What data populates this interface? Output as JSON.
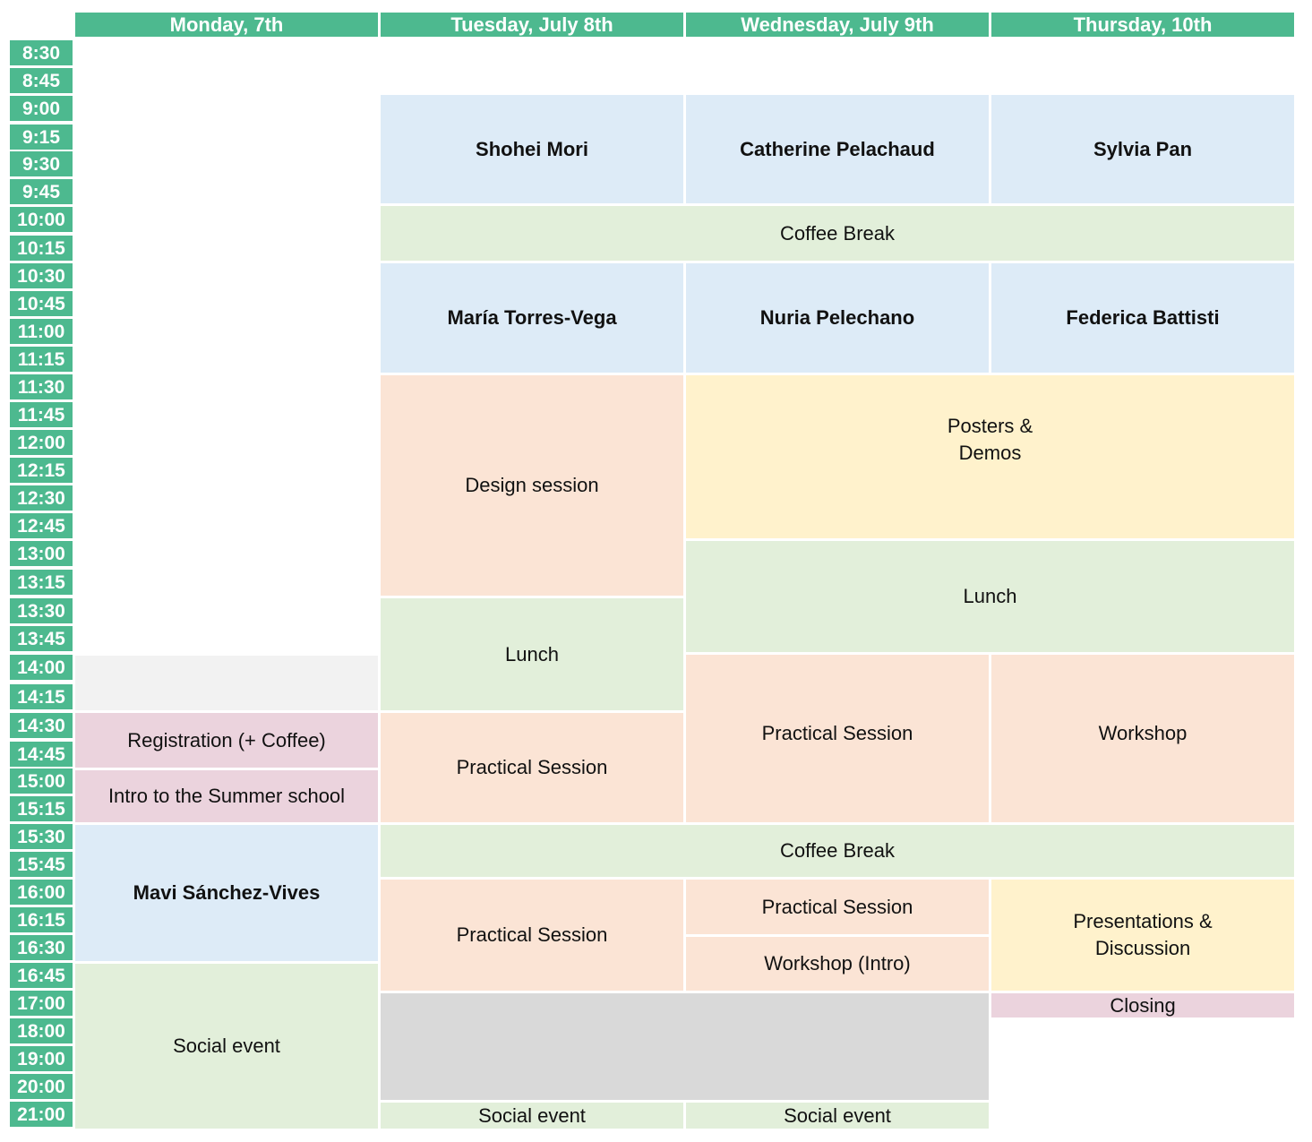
{
  "days": [
    "Monday, 7th",
    "Tuesday, July 8th",
    "Wednesday, July 9th",
    "Thursday, 10th"
  ],
  "times": [
    "8:30",
    "8:45",
    "9:00",
    "9:15",
    "9:30",
    "9:45",
    "10:00",
    "10:15",
    "10:30",
    "10:45",
    "11:00",
    "11:15",
    "11:30",
    "11:45",
    "12:00",
    "12:15",
    "12:30",
    "12:45",
    "13:00",
    "13:15",
    "13:30",
    "13:45",
    "14:00",
    "14:15",
    "14:30",
    "14:45",
    "15:00",
    "15:15",
    "15:30",
    "15:45",
    "16:00",
    "16:15",
    "16:30",
    "16:45",
    "17:00",
    "18:00",
    "19:00",
    "20:00",
    "21:00"
  ],
  "events": {
    "tue_keynote_1": "Shohei Mori",
    "wed_keynote_1": "Catherine Pelachaud",
    "thu_keynote_1": "Sylvia Pan",
    "coffee_break_morning": "Coffee Break",
    "tue_keynote_2": "María Torres-Vega",
    "wed_keynote_2": "Nuria Pelechano",
    "thu_keynote_2": "Federica Battisti",
    "tue_design_session": "Design session",
    "posters_demos_line1": "Posters &",
    "posters_demos_line2": "Demos",
    "lunch_wed_thu": "Lunch",
    "lunch_tue": "Lunch",
    "wed_practical_afternoon": "Practical Session",
    "thu_workshop": "Workshop",
    "mon_registration": "Registration (+ Coffee)",
    "mon_intro": "Intro to the Summer school",
    "tue_practical_afternoon": "Practical Session",
    "coffee_break_afternoon": "Coffee Break",
    "mon_keynote": "Mavi Sánchez-Vives",
    "tue_practical_late": "Practical Session",
    "wed_practical_late": "Practical Session",
    "wed_workshop_intro": "Workshop (Intro)",
    "thu_presentations_line1": "Presentations &",
    "thu_presentations_line2": "Discussion",
    "thu_closing": "Closing",
    "mon_social": "Social event",
    "tue_social": "Social event",
    "wed_social": "Social event"
  },
  "colors": {
    "header": "#4db98f",
    "keynote": "#ddebf7",
    "break": "#e2efda",
    "session": "#fbe4d5",
    "posters": "#fff2cc",
    "admin": "#ebd3dd",
    "free": "#d9d9d9"
  }
}
